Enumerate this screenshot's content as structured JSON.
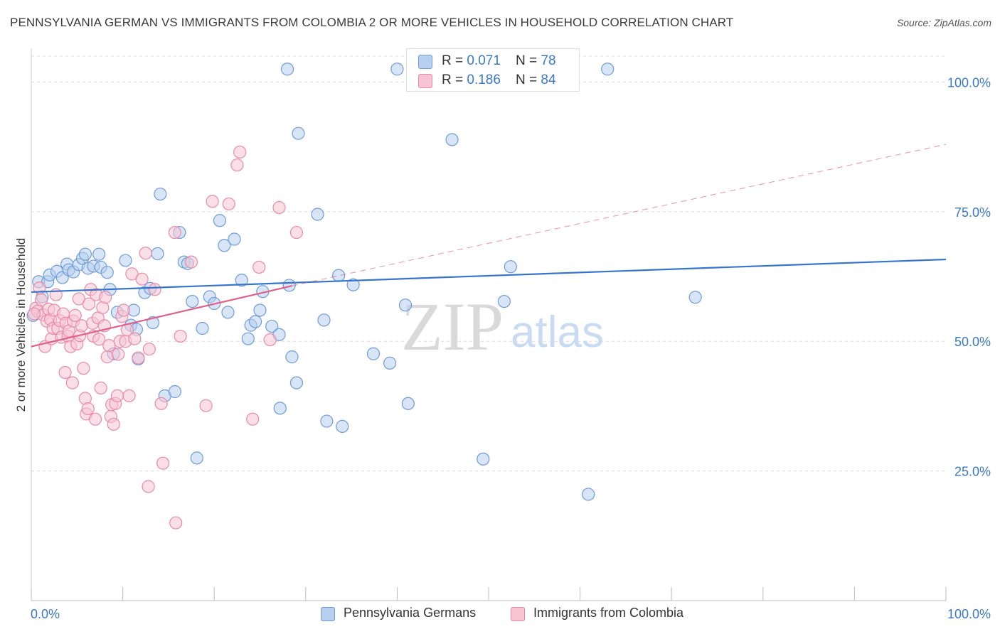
{
  "title": "PENNSYLVANIA GERMAN VS IMMIGRANTS FROM COLOMBIA 2 OR MORE VEHICLES IN HOUSEHOLD CORRELATION CHART",
  "source": "Source: ZipAtlas.com",
  "watermark": {
    "zip": "ZIP",
    "atlas": "atlas"
  },
  "legend_top": {
    "rows": [
      {
        "r_label": "R = ",
        "r_value": "0.071",
        "n_label": "N = ",
        "n_value": "78"
      },
      {
        "r_label": "R = ",
        "r_value": "0.186",
        "n_label": "N = ",
        "n_value": "84"
      }
    ]
  },
  "colors": {
    "blue_fill": "#b8d0ef",
    "blue_stroke": "#6f9bd6",
    "blue_line": "#3575cc",
    "pink_fill": "#f7c4d4",
    "pink_stroke": "#e88aa8",
    "pink_line": "#e0608a",
    "grid": "#dcdcdc",
    "tick_label": "#3a78c8"
  },
  "chart_data": {
    "type": "scatter",
    "title": "PENNSYLVANIA GERMAN VS IMMIGRANTS FROM COLOMBIA 2 OR MORE VEHICLES IN HOUSEHOLD CORRELATION CHART",
    "xlabel": "",
    "ylabel": "2 or more Vehicles in Household",
    "xlim": [
      0,
      100
    ],
    "ylim": [
      0,
      105
    ],
    "x_tick_labels": [
      "0.0%",
      "100.0%"
    ],
    "y_ticks": [
      25,
      50,
      75,
      100
    ],
    "y_tick_labels": [
      "25.0%",
      "50.0%",
      "75.0%",
      "100.0%"
    ],
    "grid": true,
    "legend_position": "top-center",
    "series": [
      {
        "name": "Pennsylvania Germans",
        "color": "#6f9bd6",
        "trend": {
          "x": [
            0,
            100
          ],
          "y": [
            59.5,
            65.8
          ],
          "style": "solid"
        },
        "points": [
          [
            0.8,
            61.5
          ],
          [
            1.2,
            58.6
          ],
          [
            1.8,
            61.5
          ],
          [
            2,
            62.8
          ],
          [
            2.8,
            63.5
          ],
          [
            3.4,
            62.3
          ],
          [
            3.9,
            64.9
          ],
          [
            4.1,
            63.8
          ],
          [
            4.6,
            63.4
          ],
          [
            5.2,
            64.8
          ],
          [
            5.6,
            66.0
          ],
          [
            5.9,
            66.8
          ],
          [
            6.2,
            64.1
          ],
          [
            6.8,
            64.5
          ],
          [
            7.4,
            66.8
          ],
          [
            7.6,
            64.3
          ],
          [
            8.3,
            63.3
          ],
          [
            8.6,
            60.0
          ],
          [
            9.4,
            55.6
          ],
          [
            9.0,
            47.6
          ],
          [
            10.3,
            65.6
          ],
          [
            10.9,
            53.1
          ],
          [
            11.2,
            56.0
          ],
          [
            11.5,
            52.3
          ],
          [
            11.7,
            46.6
          ],
          [
            12.4,
            59.4
          ],
          [
            13.0,
            60.2
          ],
          [
            13.3,
            53.6
          ],
          [
            13.8,
            66.9
          ],
          [
            14.1,
            78.4
          ],
          [
            14.6,
            39.5
          ],
          [
            15.7,
            40.3
          ],
          [
            16.2,
            71.0
          ],
          [
            16.7,
            65.3
          ],
          [
            17.1,
            65.0
          ],
          [
            17.6,
            57.7
          ],
          [
            18.1,
            27.5
          ],
          [
            18.7,
            52.5
          ],
          [
            19.5,
            58.6
          ],
          [
            20.0,
            57.3
          ],
          [
            20.6,
            73.3
          ],
          [
            21.1,
            68.5
          ],
          [
            21.5,
            55.6
          ],
          [
            22.2,
            69.7
          ],
          [
            23.0,
            61.8
          ],
          [
            23.7,
            50.5
          ],
          [
            24.0,
            53.1
          ],
          [
            24.5,
            53.8
          ],
          [
            25.0,
            56.0
          ],
          [
            25.3,
            59.6
          ],
          [
            26.3,
            52.9
          ],
          [
            27.1,
            51.3
          ],
          [
            27.2,
            37.1
          ],
          [
            28.5,
            47.0
          ],
          [
            29.0,
            42.0
          ],
          [
            28.2,
            60.8
          ],
          [
            29.2,
            90.1
          ],
          [
            31.3,
            74.5
          ],
          [
            32.0,
            54.1
          ],
          [
            32.3,
            34.6
          ],
          [
            33.6,
            62.7
          ],
          [
            34.0,
            33.6
          ],
          [
            35.2,
            60.9
          ],
          [
            37.4,
            47.6
          ],
          [
            39.2,
            45.8
          ],
          [
            40.9,
            57.0
          ],
          [
            41.2,
            38.0
          ],
          [
            46.0,
            88.9
          ],
          [
            49.4,
            27.3
          ],
          [
            51.7,
            57.7
          ],
          [
            52.4,
            64.4
          ],
          [
            60.9,
            20.5
          ],
          [
            72.6,
            58.5
          ],
          [
            28.0,
            102.5
          ],
          [
            40.0,
            102.5
          ],
          [
            47.0,
            102.5
          ],
          [
            63.0,
            102.5
          ],
          [
            0.2,
            55.0
          ]
        ]
      },
      {
        "name": "Immigrants from Colombia",
        "color": "#e88aa8",
        "trend": {
          "x": [
            0,
            28.5
          ],
          "y": [
            49.0,
            60.7
          ],
          "style": "solid"
        },
        "trend_ext": {
          "x": [
            28.5,
            100
          ],
          "y": [
            60.7,
            88.0
          ],
          "style": "dashed"
        },
        "points": [
          [
            0.5,
            56.4
          ],
          [
            0.7,
            55.8
          ],
          [
            0.9,
            60.3
          ],
          [
            1.1,
            58.0
          ],
          [
            1.3,
            55.1
          ],
          [
            1.5,
            49.0
          ],
          [
            1.7,
            53.9
          ],
          [
            1.9,
            56.2
          ],
          [
            2.1,
            54.2
          ],
          [
            2.2,
            50.5
          ],
          [
            2.4,
            52.5
          ],
          [
            2.5,
            56.0
          ],
          [
            2.7,
            59.0
          ],
          [
            2.9,
            52.5
          ],
          [
            3.1,
            54.0
          ],
          [
            3.3,
            50.8
          ],
          [
            3.5,
            55.3
          ],
          [
            3.7,
            44.0
          ],
          [
            3.8,
            53.5
          ],
          [
            4.0,
            51.0
          ],
          [
            4.1,
            52.0
          ],
          [
            4.3,
            49.0
          ],
          [
            4.5,
            42.0
          ],
          [
            4.6,
            53.9
          ],
          [
            4.8,
            55.0
          ],
          [
            5.0,
            49.5
          ],
          [
            5.2,
            58.2
          ],
          [
            5.3,
            51.1
          ],
          [
            5.5,
            53.0
          ],
          [
            5.7,
            44.8
          ],
          [
            5.9,
            39.0
          ],
          [
            6.0,
            36.0
          ],
          [
            6.2,
            37.0
          ],
          [
            6.3,
            57.2
          ],
          [
            6.5,
            60.0
          ],
          [
            6.7,
            53.5
          ],
          [
            6.8,
            51.0
          ],
          [
            7.0,
            35.0
          ],
          [
            7.1,
            59.0
          ],
          [
            7.3,
            54.5
          ],
          [
            7.4,
            50.4
          ],
          [
            7.6,
            41.0
          ],
          [
            7.8,
            56.5
          ],
          [
            8.0,
            53.0
          ],
          [
            8.1,
            58.5
          ],
          [
            8.3,
            47.0
          ],
          [
            8.5,
            49.2
          ],
          [
            8.7,
            35.5
          ],
          [
            8.8,
            37.8
          ],
          [
            9.0,
            34.0
          ],
          [
            9.2,
            38.0
          ],
          [
            9.4,
            39.5
          ],
          [
            9.5,
            47.5
          ],
          [
            9.7,
            50.0
          ],
          [
            9.9,
            54.8
          ],
          [
            10.1,
            56.0
          ],
          [
            10.3,
            50.0
          ],
          [
            10.5,
            52.2
          ],
          [
            10.7,
            39.5
          ],
          [
            11.0,
            63.0
          ],
          [
            11.3,
            50.5
          ],
          [
            11.7,
            46.8
          ],
          [
            12.1,
            62.0
          ],
          [
            12.5,
            67.0
          ],
          [
            12.9,
            48.5
          ],
          [
            13.5,
            60.0
          ],
          [
            14.2,
            38.0
          ],
          [
            14.4,
            26.5
          ],
          [
            15.8,
            15.0
          ],
          [
            16.3,
            51.0
          ],
          [
            15.7,
            71.0
          ],
          [
            17.5,
            65.3
          ],
          [
            19.1,
            37.6
          ],
          [
            19.8,
            77.0
          ],
          [
            21.6,
            76.5
          ],
          [
            22.5,
            84.0
          ],
          [
            22.8,
            86.5
          ],
          [
            24.2,
            35.0
          ],
          [
            24.9,
            64.3
          ],
          [
            26.1,
            50.3
          ],
          [
            27.1,
            75.8
          ],
          [
            29.0,
            71.0
          ],
          [
            0.3,
            55.3
          ],
          [
            12.8,
            22.0
          ]
        ]
      }
    ]
  }
}
